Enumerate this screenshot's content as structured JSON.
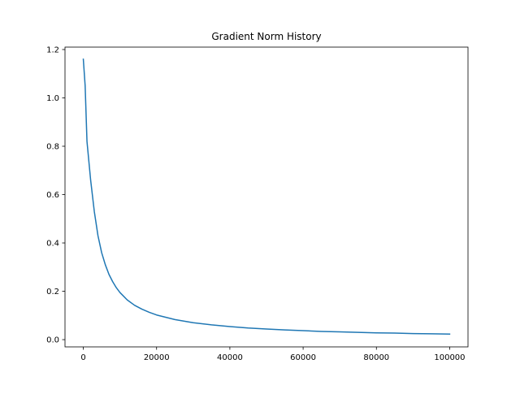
{
  "chart_data": {
    "type": "line",
    "title": "Gradient Norm History",
    "xlabel": "",
    "ylabel": "",
    "xlim": [
      -5000,
      105000
    ],
    "ylim": [
      -0.03,
      1.21
    ],
    "grid": false,
    "x_ticks": [
      0,
      20000,
      40000,
      60000,
      80000,
      100000
    ],
    "x_tick_labels": [
      "0",
      "20000",
      "40000",
      "60000",
      "80000",
      "100000"
    ],
    "y_ticks": [
      0.0,
      0.2,
      0.4,
      0.6,
      0.8,
      1.0,
      1.2
    ],
    "y_tick_labels": [
      "0.0",
      "0.2",
      "0.4",
      "0.6",
      "0.8",
      "1.0",
      "1.2"
    ],
    "series": [
      {
        "color": "#1f77b4",
        "x": [
          0,
          500,
          1000,
          2000,
          3000,
          4000,
          5000,
          6000,
          7000,
          8000,
          9000,
          10000,
          12000,
          14000,
          16000,
          18000,
          20000,
          25000,
          30000,
          35000,
          40000,
          45000,
          50000,
          55000,
          60000,
          65000,
          70000,
          75000,
          80000,
          85000,
          90000,
          95000,
          100000
        ],
        "y": [
          1.16,
          1.05,
          0.82,
          0.66,
          0.53,
          0.43,
          0.36,
          0.31,
          0.27,
          0.24,
          0.215,
          0.195,
          0.164,
          0.142,
          0.126,
          0.113,
          0.102,
          0.083,
          0.07,
          0.061,
          0.054,
          0.048,
          0.044,
          0.04,
          0.037,
          0.034,
          0.032,
          0.03,
          0.028,
          0.027,
          0.025,
          0.024,
          0.023
        ]
      }
    ]
  }
}
